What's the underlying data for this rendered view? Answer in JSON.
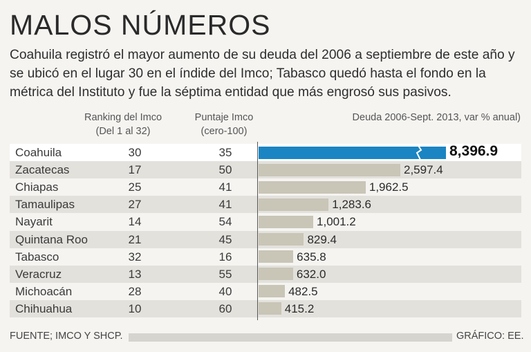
{
  "header": {
    "title": "MALOS NÚMEROS",
    "subtitle": "Coahuila registró el mayor aumento de su deuda del 2006 a septiembre de este año y se ubicó en el lugar 30 en el índide del Imco; Tabasco quedó hasta el fondo en la métrica del Instituto y fue la séptima entidad que más engrosó sus pasivos."
  },
  "columns": {
    "rank_line1": "Ranking del Imco",
    "rank_line2": "(Del 1 al 32)",
    "score_line1": "Puntaje Imco",
    "score_line2": "(cero-100)",
    "debt": "Deuda 2006-Sept. 2013, var % anual)"
  },
  "chart_data": {
    "type": "bar",
    "orientation": "horizontal",
    "title": "MALOS NÚMEROS",
    "xlabel": "Deuda 2006-Sept. 2013, var % anual)",
    "categories": [
      "Coahuila",
      "Zacatecas",
      "Chiapas",
      "Tamaulipas",
      "Nayarit",
      "Quintana Roo",
      "Tabasco",
      "Veracruz",
      "Michoacán",
      "Chihuahua"
    ],
    "values": [
      8396.9,
      2597.4,
      1962.5,
      1283.6,
      1001.2,
      829.4,
      635.8,
      632.0,
      482.5,
      415.2
    ],
    "value_labels": [
      "8,396.9",
      "2,597.4",
      "1,962.5",
      "1,283.6",
      "1,001.2",
      "829.4",
      "635.8",
      "632.0",
      "482.5",
      "415.2"
    ],
    "ranking_imco": [
      "30",
      "17",
      "25",
      "27",
      "14",
      "21",
      "32",
      "13",
      "28",
      "10"
    ],
    "puntaje_imco": [
      "35",
      "50",
      "41",
      "41",
      "54",
      "45",
      "16",
      "55",
      "40",
      "60"
    ],
    "highlight_index": 0,
    "axis_break_on_highlight": true,
    "colors": {
      "highlight": "#1a85c2",
      "normal": "#c9c5b7"
    }
  },
  "footer": {
    "source": "FUENTE; IMCO Y SHCP.",
    "credit": "GRÁFICO: EE."
  }
}
